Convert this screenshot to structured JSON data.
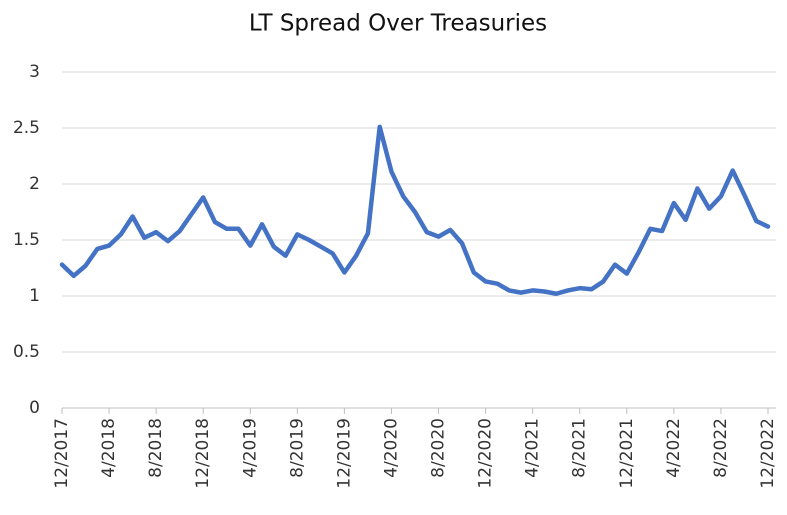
{
  "chart_data": {
    "type": "line",
    "title": "LT Spread Over Treasuries",
    "categories": [
      "12/2017",
      null,
      null,
      null,
      "4/2018",
      null,
      null,
      null,
      "8/2018",
      null,
      null,
      null,
      "12/2018",
      null,
      null,
      null,
      "4/2019",
      null,
      null,
      null,
      "8/2019",
      null,
      null,
      null,
      "12/2019",
      null,
      null,
      null,
      "4/2020",
      null,
      null,
      null,
      "8/2020",
      null,
      null,
      null,
      "12/2020",
      null,
      null,
      null,
      "4/2021",
      null,
      null,
      null,
      "8/2021",
      null,
      null,
      null,
      "12/2021",
      null,
      null,
      null,
      "4/2022",
      null,
      null,
      null,
      "8/2022",
      null,
      null,
      null,
      "12/2022"
    ],
    "series": [
      {
        "name": "LT Spread Over Treasuries",
        "color": "#4472c4",
        "values": [
          1.28,
          1.18,
          1.27,
          1.42,
          1.45,
          1.55,
          1.71,
          1.52,
          1.57,
          1.49,
          1.58,
          1.73,
          1.88,
          1.66,
          1.6,
          1.6,
          1.45,
          1.64,
          1.44,
          1.36,
          1.55,
          1.5,
          1.44,
          1.38,
          1.21,
          1.36,
          1.56,
          2.51,
          2.11,
          1.89,
          1.75,
          1.57,
          1.53,
          1.59,
          1.47,
          1.21,
          1.13,
          1.11,
          1.05,
          1.03,
          1.05,
          1.04,
          1.02,
          1.05,
          1.07,
          1.06,
          1.13,
          1.28,
          1.2,
          1.39,
          1.6,
          1.58,
          1.83,
          1.68,
          1.96,
          1.78,
          1.89,
          2.12,
          1.9,
          1.67,
          1.62
        ]
      }
    ],
    "ylim": [
      0,
      3
    ],
    "yticks": [
      0,
      0.5,
      1,
      1.5,
      2,
      2.5,
      3
    ],
    "grid": true
  }
}
